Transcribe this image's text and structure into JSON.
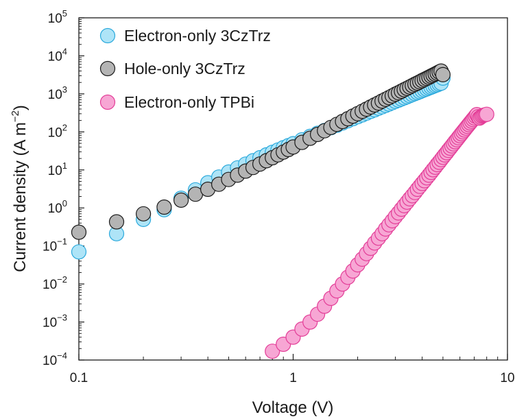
{
  "chart_data": {
    "type": "scatter",
    "xscale": "log",
    "yscale": "log",
    "xlim": [
      0.1,
      10
    ],
    "ylim": [
      0.0001,
      100000
    ],
    "xlabel": "Voltage (V)",
    "ylabel_main": "Current density (A m",
    "ylabel_sup": "−2",
    "ylabel_close": ")",
    "x_ticks": [
      {
        "value": 0.1,
        "label": "0.1"
      },
      {
        "value": 1,
        "label": "1"
      },
      {
        "value": 10,
        "label": "10"
      }
    ],
    "y_ticks": [
      {
        "value": 0.0001,
        "base": "10",
        "exp": "−4"
      },
      {
        "value": 0.001,
        "base": "10",
        "exp": "−3"
      },
      {
        "value": 0.01,
        "base": "10",
        "exp": "−2"
      },
      {
        "value": 0.1,
        "base": "10",
        "exp": "−1"
      },
      {
        "value": 1,
        "base": "10",
        "exp": "0"
      },
      {
        "value": 10,
        "base": "10",
        "exp": "1"
      },
      {
        "value": 100,
        "base": "10",
        "exp": "2"
      },
      {
        "value": 1000,
        "base": "10",
        "exp": "3"
      },
      {
        "value": 10000,
        "base": "10",
        "exp": "4"
      },
      {
        "value": 100000,
        "base": "10",
        "exp": "5"
      }
    ],
    "legend_position": "top-left",
    "series": [
      {
        "name": "Electron-only 3CzTrz",
        "fill": "#aee4f7",
        "stroke": "#2aa9dc",
        "x": [
          0.1,
          0.15,
          0.2,
          0.25,
          0.3,
          0.35,
          0.4,
          0.45,
          0.5,
          0.55,
          0.6,
          0.65,
          0.7,
          0.75,
          0.8,
          0.85,
          0.9,
          0.95,
          1.0,
          1.1,
          1.2,
          1.3,
          1.4,
          1.5,
          1.6,
          1.7,
          1.8,
          1.9,
          2.0,
          2.1,
          2.2,
          2.3,
          2.4,
          2.5,
          2.6,
          2.7,
          2.8,
          2.9,
          3.0,
          3.1,
          3.2,
          3.3,
          3.4,
          3.5,
          3.6,
          3.7,
          3.8,
          3.9,
          4.0,
          4.1,
          4.2,
          4.3,
          4.4,
          4.5,
          4.6,
          4.7,
          4.8,
          4.9,
          5.0
        ],
        "y": [
          0.07,
          0.21,
          0.5,
          0.9,
          1.8,
          3.0,
          4.6,
          6.5,
          8.8,
          11.3,
          14.2,
          17.4,
          20.9,
          24.8,
          29.0,
          33.5,
          38.4,
          43.5,
          49,
          62,
          76,
          92,
          109,
          129,
          150,
          172,
          197,
          223,
          251,
          281,
          313,
          346,
          382,
          419,
          458,
          500,
          543,
          588,
          635,
          684,
          735,
          788,
          843,
          900,
          959,
          1020,
          1083,
          1148,
          1215,
          1284,
          1355,
          1428,
          1503,
          1580,
          1659,
          1740,
          1823,
          1908,
          2600
        ]
      },
      {
        "name": "Hole-only 3CzTrz",
        "fill": "#b4b4b4",
        "stroke": "#1a1a1a",
        "x": [
          0.1,
          0.15,
          0.2,
          0.25,
          0.3,
          0.35,
          0.4,
          0.45,
          0.5,
          0.55,
          0.6,
          0.65,
          0.7,
          0.75,
          0.8,
          0.85,
          0.9,
          0.95,
          1.0,
          1.1,
          1.2,
          1.3,
          1.4,
          1.5,
          1.6,
          1.7,
          1.8,
          1.9,
          2.0,
          2.1,
          2.2,
          2.3,
          2.4,
          2.5,
          2.6,
          2.7,
          2.8,
          2.9,
          3.0,
          3.1,
          3.2,
          3.3,
          3.4,
          3.5,
          3.6,
          3.7,
          3.8,
          3.9,
          4.0,
          4.1,
          4.2,
          4.3,
          4.4,
          4.5,
          4.6,
          4.7,
          4.8,
          4.9,
          5.0
        ],
        "y": [
          0.23,
          0.43,
          0.7,
          1.05,
          1.6,
          2.3,
          3.1,
          4.2,
          5.6,
          7.3,
          9.3,
          11.6,
          14.3,
          17.4,
          20.9,
          24.9,
          29.4,
          34.4,
          40,
          53,
          68,
          86,
          107,
          131,
          158,
          188,
          222,
          260,
          302,
          348,
          398,
          453,
          512,
          576,
          645,
          720,
          800,
          886,
          977,
          1074,
          1177,
          1286,
          1401,
          1523,
          1651,
          1786,
          1928,
          2077,
          2233,
          2396,
          2567,
          2745,
          2931,
          3125,
          3326,
          3536,
          3754,
          3980,
          3200
        ]
      },
      {
        "name": "Electron-only TPBi",
        "fill": "#f7a6d4",
        "stroke": "#e33d97",
        "x": [
          0.8,
          0.9,
          1.0,
          1.1,
          1.2,
          1.3,
          1.4,
          1.5,
          1.6,
          1.7,
          1.8,
          1.9,
          2.0,
          2.1,
          2.2,
          2.3,
          2.4,
          2.5,
          2.6,
          2.7,
          2.8,
          2.9,
          3.0,
          3.1,
          3.2,
          3.3,
          3.4,
          3.5,
          3.6,
          3.7,
          3.8,
          3.9,
          4.0,
          4.1,
          4.2,
          4.3,
          4.4,
          4.5,
          4.6,
          4.7,
          4.8,
          4.9,
          5.0,
          5.1,
          5.2,
          5.3,
          5.4,
          5.5,
          5.6,
          5.7,
          5.8,
          5.9,
          6.0,
          6.1,
          6.2,
          6.3,
          6.4,
          6.5,
          6.6,
          6.7,
          6.8,
          6.9,
          7.0,
          7.1,
          7.2,
          7.3,
          7.4,
          7.5,
          7.6,
          7.7,
          7.8,
          7.9,
          8.0
        ],
        "y": [
          0.00017,
          0.00026,
          0.0004,
          0.00065,
          0.001,
          0.0016,
          0.0026,
          0.0042,
          0.0066,
          0.01,
          0.015,
          0.022,
          0.032,
          0.045,
          0.063,
          0.087,
          0.12,
          0.16,
          0.21,
          0.28,
          0.36,
          0.46,
          0.59,
          0.74,
          0.93,
          1.15,
          1.42,
          1.74,
          2.1,
          2.55,
          3.1,
          3.7,
          4.4,
          5.2,
          6.2,
          7.3,
          8.6,
          10.1,
          11.8,
          13.8,
          16.0,
          18.6,
          21.5,
          24.8,
          28.5,
          32.7,
          37.4,
          42.7,
          48.6,
          55.2,
          62.5,
          70.6,
          79.6,
          89.5,
          100.5,
          112.6,
          125.9,
          140.4,
          156.3,
          173.6,
          192.5,
          213,
          235,
          259,
          285,
          250,
          230,
          245,
          260,
          270,
          278,
          283,
          290
        ]
      }
    ]
  }
}
